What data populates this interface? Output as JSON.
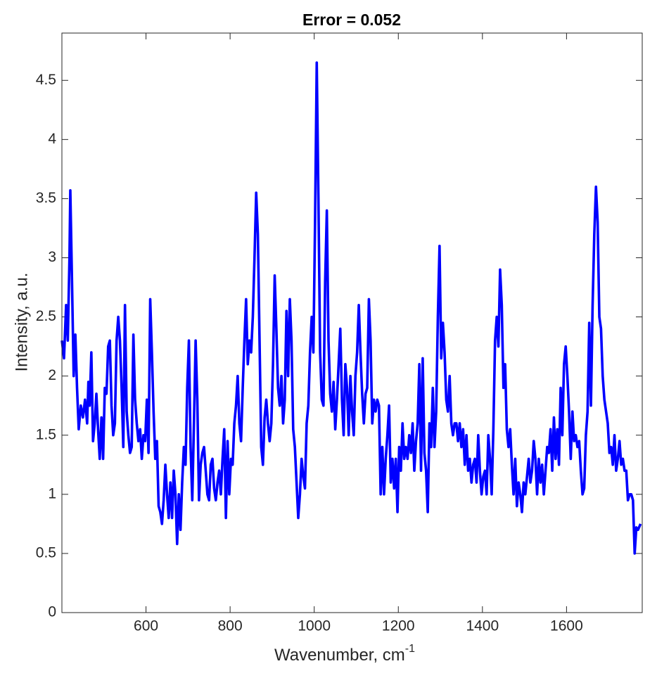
{
  "chart_data": {
    "type": "line",
    "title": "Error = 0.052",
    "xlabel": "Wavenumber, cm",
    "xlabel_superscript": "-1",
    "ylabel": "Intensity, a.u.",
    "color": "#0000ff",
    "xlim": [
      400,
      1780
    ],
    "ylim": [
      0,
      4.9
    ],
    "xticks": [
      600,
      800,
      1000,
      1200,
      1400,
      1600
    ],
    "yticks": [
      0,
      0.5,
      1,
      1.5,
      2,
      2.5,
      3,
      3.5,
      4,
      4.5
    ],
    "x": [
      400,
      405,
      410,
      414,
      418,
      420,
      424,
      428,
      432,
      436,
      440,
      445,
      450,
      455,
      460,
      463,
      466,
      470,
      474,
      478,
      482,
      486,
      490,
      494,
      498,
      502,
      506,
      510,
      514,
      518,
      522,
      526,
      530,
      534,
      538,
      542,
      546,
      550,
      554,
      558,
      562,
      566,
      570,
      574,
      578,
      582,
      586,
      590,
      594,
      598,
      602,
      606,
      610,
      614,
      618,
      622,
      626,
      630,
      634,
      638,
      642,
      646,
      650,
      654,
      658,
      662,
      666,
      670,
      674,
      678,
      682,
      686,
      690,
      694,
      698,
      702,
      706,
      710,
      714,
      718,
      722,
      726,
      730,
      734,
      738,
      742,
      746,
      750,
      754,
      758,
      762,
      766,
      770,
      774,
      778,
      782,
      786,
      790,
      794,
      798,
      802,
      806,
      810,
      814,
      818,
      822,
      826,
      830,
      834,
      838,
      842,
      846,
      850,
      854,
      858,
      862,
      866,
      870,
      874,
      878,
      882,
      886,
      890,
      894,
      898,
      902,
      906,
      910,
      914,
      918,
      922,
      926,
      930,
      934,
      938,
      942,
      946,
      950,
      954,
      958,
      962,
      966,
      970,
      974,
      978,
      982,
      986,
      990,
      994,
      998,
      1002,
      1006,
      1010,
      1014,
      1018,
      1022,
      1026,
      1030,
      1034,
      1038,
      1042,
      1046,
      1050,
      1054,
      1058,
      1062,
      1066,
      1070,
      1074,
      1078,
      1082,
      1086,
      1090,
      1094,
      1098,
      1102,
      1106,
      1110,
      1114,
      1118,
      1122,
      1126,
      1130,
      1134,
      1138,
      1142,
      1146,
      1150,
      1154,
      1158,
      1162,
      1166,
      1170,
      1174,
      1178,
      1182,
      1186,
      1190,
      1194,
      1198,
      1202,
      1206,
      1210,
      1214,
      1218,
      1222,
      1226,
      1230,
      1234,
      1238,
      1242,
      1246,
      1250,
      1254,
      1258,
      1262,
      1266,
      1270,
      1274,
      1278,
      1282,
      1286,
      1290,
      1294,
      1298,
      1302,
      1306,
      1310,
      1314,
      1318,
      1322,
      1326,
      1330,
      1334,
      1338,
      1342,
      1346,
      1350,
      1354,
      1358,
      1362,
      1366,
      1370,
      1374,
      1378,
      1382,
      1386,
      1390,
      1394,
      1398,
      1402,
      1406,
      1410,
      1414,
      1418,
      1422,
      1426,
      1430,
      1434,
      1438,
      1442,
      1446,
      1450,
      1454,
      1458,
      1462,
      1466,
      1470,
      1474,
      1478,
      1482,
      1486,
      1490,
      1494,
      1498,
      1502,
      1506,
      1510,
      1514,
      1518,
      1522,
      1526,
      1530,
      1534,
      1538,
      1542,
      1546,
      1550,
      1554,
      1558,
      1562,
      1566,
      1570,
      1574,
      1578,
      1582,
      1586,
      1590,
      1594,
      1598,
      1602,
      1606,
      1610,
      1614,
      1618,
      1622,
      1626,
      1630,
      1634,
      1638,
      1642,
      1646,
      1650,
      1654,
      1658,
      1662,
      1666,
      1670,
      1674,
      1678,
      1682,
      1686,
      1690,
      1694,
      1698,
      1702,
      1706,
      1710,
      1714,
      1718,
      1722,
      1726,
      1730,
      1734,
      1738,
      1742,
      1746,
      1750,
      1754,
      1758,
      1762,
      1766,
      1770,
      1776
    ],
    "values": [
      2.3,
      2.15,
      2.6,
      2.3,
      3.0,
      3.57,
      2.8,
      2.0,
      2.35,
      1.9,
      1.55,
      1.75,
      1.65,
      1.8,
      1.6,
      1.95,
      1.75,
      2.2,
      1.45,
      1.6,
      1.85,
      1.55,
      1.3,
      1.65,
      1.3,
      1.9,
      1.85,
      2.25,
      2.3,
      1.75,
      1.5,
      1.6,
      2.3,
      2.5,
      2.3,
      1.9,
      1.4,
      2.6,
      1.7,
      1.5,
      1.35,
      1.4,
      2.35,
      1.8,
      1.6,
      1.45,
      1.55,
      1.3,
      1.5,
      1.45,
      1.8,
      1.35,
      2.65,
      2.2,
      1.7,
      1.3,
      1.45,
      0.9,
      0.85,
      0.75,
      0.95,
      1.25,
      1.0,
      0.8,
      1.1,
      0.8,
      1.2,
      1.0,
      0.58,
      1.0,
      0.7,
      1.1,
      1.4,
      1.25,
      1.9,
      2.3,
      1.4,
      0.95,
      1.6,
      2.3,
      1.8,
      0.95,
      1.25,
      1.35,
      1.4,
      1.2,
      1.0,
      0.95,
      1.25,
      1.3,
      1.05,
      0.95,
      1.1,
      1.2,
      1.0,
      1.3,
      1.55,
      0.8,
      1.45,
      1.0,
      1.3,
      1.25,
      1.6,
      1.75,
      2.0,
      1.6,
      1.45,
      1.9,
      2.3,
      2.65,
      2.1,
      2.3,
      2.2,
      2.5,
      3.0,
      3.55,
      3.2,
      2.3,
      1.4,
      1.25,
      1.65,
      1.8,
      1.6,
      1.45,
      1.6,
      2.1,
      2.85,
      2.4,
      1.9,
      1.75,
      2.0,
      1.6,
      1.8,
      2.55,
      2.0,
      2.65,
      2.3,
      1.55,
      1.4,
      1.1,
      0.8,
      1.0,
      1.3,
      1.15,
      1.05,
      1.6,
      1.75,
      2.2,
      2.5,
      2.2,
      3.3,
      4.65,
      3.5,
      2.2,
      1.8,
      1.75,
      2.8,
      3.4,
      2.3,
      1.85,
      1.7,
      1.95,
      1.55,
      1.8,
      2.1,
      2.4,
      1.8,
      1.5,
      2.1,
      1.9,
      1.5,
      2.0,
      1.7,
      1.5,
      2.0,
      2.2,
      2.6,
      2.2,
      1.85,
      1.6,
      1.85,
      1.9,
      2.65,
      2.3,
      1.6,
      1.8,
      1.7,
      1.8,
      1.75,
      1.0,
      1.4,
      1.0,
      1.3,
      1.5,
      1.75,
      1.1,
      1.3,
      1.05,
      1.3,
      0.85,
      1.4,
      1.2,
      1.6,
      1.3,
      1.4,
      1.3,
      1.5,
      1.35,
      1.6,
      1.2,
      1.45,
      1.6,
      2.1,
      1.2,
      2.15,
      1.35,
      1.2,
      0.85,
      1.6,
      1.4,
      1.9,
      1.4,
      1.7,
      2.5,
      3.1,
      2.15,
      2.45,
      2.2,
      1.8,
      1.7,
      2.0,
      1.6,
      1.5,
      1.6,
      1.6,
      1.45,
      1.6,
      1.4,
      1.55,
      1.25,
      1.5,
      1.2,
      1.3,
      1.1,
      1.25,
      1.3,
      1.1,
      1.5,
      1.2,
      1.0,
      1.15,
      1.2,
      1.0,
      1.5,
      1.3,
      1.0,
      1.55,
      2.3,
      2.5,
      2.25,
      2.9,
      2.6,
      1.9,
      2.1,
      1.55,
      1.4,
      1.55,
      1.25,
      1.0,
      1.3,
      0.9,
      1.1,
      1.0,
      0.85,
      1.1,
      1.0,
      1.15,
      1.3,
      1.1,
      1.2,
      1.45,
      1.3,
      1.0,
      1.3,
      1.1,
      1.25,
      1.0,
      1.2,
      1.4,
      1.35,
      1.55,
      1.2,
      1.65,
      1.3,
      1.55,
      1.25,
      1.9,
      1.5,
      2.1,
      2.25,
      2.0,
      1.7,
      1.3,
      1.7,
      1.45,
      1.5,
      1.4,
      1.45,
      1.2,
      1.0,
      1.05,
      1.5,
      1.7,
      2.45,
      1.75,
      2.6,
      3.2,
      3.6,
      3.3,
      2.5,
      2.4,
      2.0,
      1.8,
      1.7,
      1.6,
      1.35,
      1.4,
      1.25,
      1.5,
      1.2,
      1.3,
      1.45,
      1.25,
      1.3,
      1.2,
      1.2,
      0.95,
      1.0,
      1.0,
      0.95,
      0.5,
      0.72,
      0.7,
      0.75
    ]
  }
}
